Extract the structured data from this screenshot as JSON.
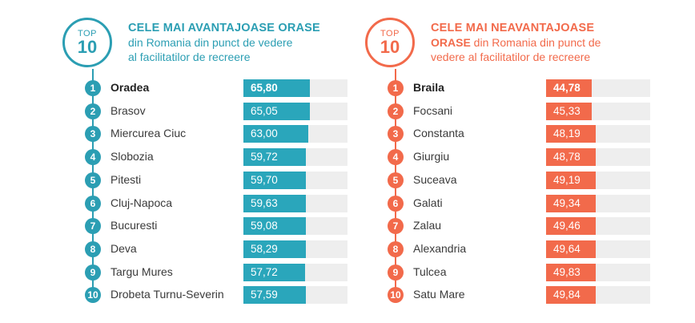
{
  "colors": {
    "best": "#2b9eb3",
    "best_fill": "#2aa6bb",
    "worst": "#f26a4b",
    "worst_fill": "#f26a4b"
  },
  "best": {
    "badge_top": "TOP",
    "badge_num": "10",
    "title": "CELE MAI AVANTAJOASE ORASE",
    "subtitle_line1": "din Romania din punct de vedere",
    "subtitle_line2": "al facilitatilor de recreere",
    "items": [
      {
        "rank": "1",
        "city": "Oradea",
        "score": "65,80",
        "fill": 0.64
      },
      {
        "rank": "2",
        "city": "Brasov",
        "score": "65,05",
        "fill": 0.64
      },
      {
        "rank": "3",
        "city": "Miercurea Ciuc",
        "score": "63,00",
        "fill": 0.62
      },
      {
        "rank": "4",
        "city": "Slobozia",
        "score": "59,72",
        "fill": 0.6
      },
      {
        "rank": "5",
        "city": "Pitesti",
        "score": "59,70",
        "fill": 0.6
      },
      {
        "rank": "6",
        "city": "Cluj-Napoca",
        "score": "59,63",
        "fill": 0.6
      },
      {
        "rank": "7",
        "city": "Bucuresti",
        "score": "59,08",
        "fill": 0.6
      },
      {
        "rank": "8",
        "city": "Deva",
        "score": "58,29",
        "fill": 0.6
      },
      {
        "rank": "9",
        "city": "Targu Mures",
        "score": "57,72",
        "fill": 0.59
      },
      {
        "rank": "10",
        "city": "Drobeta Turnu-Severin",
        "score": "57,59",
        "fill": 0.6
      }
    ]
  },
  "worst": {
    "badge_top": "TOP",
    "badge_num": "10",
    "title": "CELE MAI NEAVANTAJOASE",
    "subtitle_bold": "ORASE",
    "subtitle_rest1": " din Romania din punct de",
    "subtitle_line2": "vedere al facilitatilor de recreere",
    "items": [
      {
        "rank": "1",
        "city": "Braila",
        "score": "44,78",
        "fill": 0.44
      },
      {
        "rank": "2",
        "city": "Focsani",
        "score": "45,33",
        "fill": 0.44
      },
      {
        "rank": "3",
        "city": "Constanta",
        "score": "48,19",
        "fill": 0.48
      },
      {
        "rank": "4",
        "city": "Giurgiu",
        "score": "48,78",
        "fill": 0.48
      },
      {
        "rank": "5",
        "city": "Suceava",
        "score": "49,19",
        "fill": 0.48
      },
      {
        "rank": "6",
        "city": "Galati",
        "score": "49,34",
        "fill": 0.48
      },
      {
        "rank": "7",
        "city": "Zalau",
        "score": "49,46",
        "fill": 0.48
      },
      {
        "rank": "8",
        "city": "Alexandria",
        "score": "49,64",
        "fill": 0.48
      },
      {
        "rank": "9",
        "city": "Tulcea",
        "score": "49,83",
        "fill": 0.48
      },
      {
        "rank": "10",
        "city": "Satu Mare",
        "score": "49,84",
        "fill": 0.48
      }
    ]
  }
}
